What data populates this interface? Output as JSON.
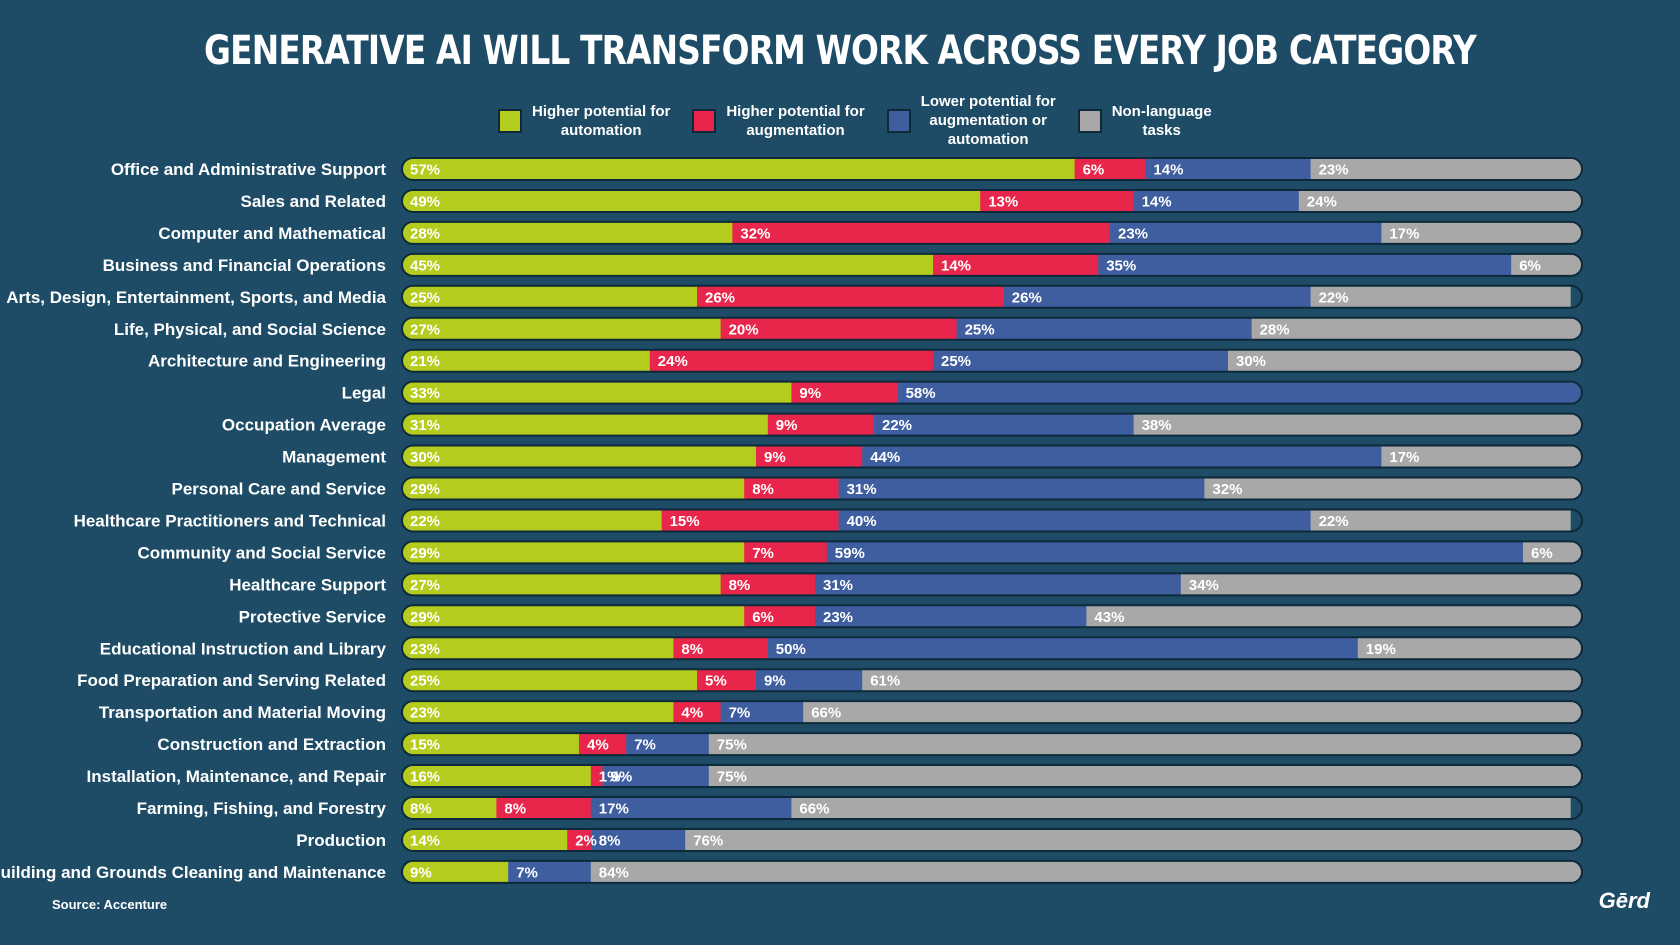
{
  "chart_data": {
    "type": "bar",
    "orientation": "horizontal",
    "stacked": true,
    "percent": true,
    "title": "GENERATIVE AI WILL TRANSFORM WORK ACROSS EVERY JOB CATEGORY",
    "xlim": [
      0,
      100
    ],
    "legend_placement": "top-center",
    "grid": false,
    "categories": [
      "Office and Administrative Support",
      "Sales and Related",
      "Computer and Mathematical",
      "Business and Financial Operations",
      "Arts, Design, Entertainment, Sports, and Media",
      "Life, Physical, and Social Science",
      "Architecture and Engineering",
      "Legal",
      "Occupation Average",
      "Management",
      "Personal Care and Service",
      "Healthcare Practitioners and Technical",
      "Community and Social Service",
      "Healthcare Support",
      "Protective Service",
      "Educational Instruction and Library",
      "Food Preparation and Serving Related",
      "Transportation and Material Moving",
      "Construction and Extraction",
      "Installation, Maintenance, and Repair",
      "Farming, Fishing, and Forestry",
      "Production",
      "Building and Grounds Cleaning and Maintenance"
    ],
    "series": [
      {
        "name": "Higher potential for automation",
        "color": "#b3cc1e",
        "values": [
          57,
          49,
          28,
          45,
          25,
          27,
          21,
          33,
          31,
          30,
          29,
          22,
          29,
          27,
          29,
          23,
          25,
          23,
          15,
          16,
          8,
          14,
          9
        ]
      },
      {
        "name": "Higher potential for augmentation",
        "color": "#e8264b",
        "values": [
          6,
          13,
          32,
          14,
          26,
          20,
          24,
          9,
          9,
          9,
          8,
          15,
          7,
          8,
          6,
          8,
          5,
          4,
          4,
          1,
          8,
          2,
          0
        ]
      },
      {
        "name": "Lower potential for augmentation or automation",
        "color": "#3f5e9f",
        "values": [
          14,
          14,
          23,
          35,
          26,
          25,
          25,
          58,
          22,
          44,
          31,
          40,
          59,
          31,
          23,
          50,
          9,
          7,
          7,
          9,
          17,
          8,
          7
        ]
      },
      {
        "name": "Non-language tasks",
        "color": "#a8a8a8",
        "values": [
          23,
          24,
          17,
          6,
          22,
          28,
          30,
          0,
          38,
          17,
          32,
          22,
          6,
          34,
          43,
          19,
          61,
          66,
          75,
          75,
          66,
          76,
          84
        ]
      }
    ]
  },
  "legend": [
    {
      "label": "Higher potential for\nautomation",
      "color": "#b3cc1e"
    },
    {
      "label": "Higher potential for\naugmentation",
      "color": "#e8264b"
    },
    {
      "label": "Lower potential for\naugmentation or\nautomation",
      "color": "#3f5e9f"
    },
    {
      "label": "Non-language\ntasks",
      "color": "#a8a8a8"
    }
  ],
  "source": "Source: Accenture",
  "brand": "Gērd"
}
